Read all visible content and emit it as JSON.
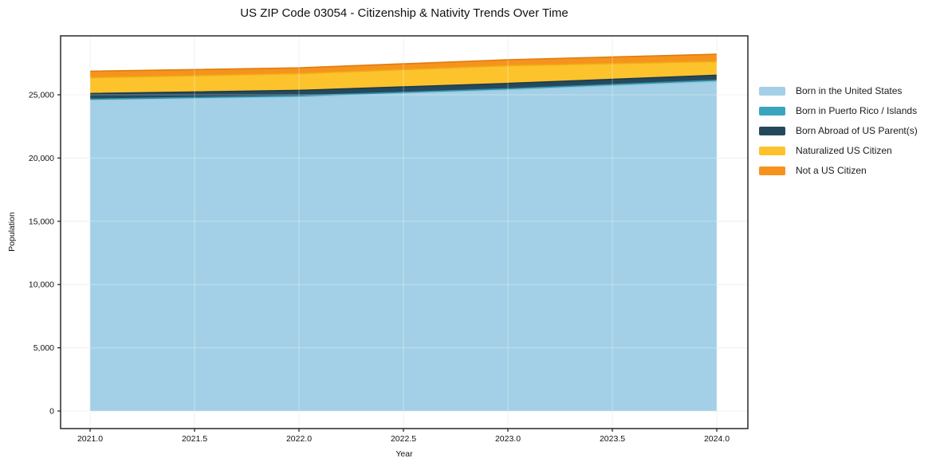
{
  "chart_data": {
    "type": "area",
    "stacked": true,
    "title": "US ZIP Code 03054 - Citizenship & Nativity Trends Over Time",
    "xlabel": "Year",
    "ylabel": "Population",
    "x": [
      2021,
      2022,
      2023,
      2024
    ],
    "series": [
      {
        "name": "Born in the United States",
        "color": "#a3d0e6",
        "edge": "#8ec4dd",
        "values": [
          24600,
          24850,
          25400,
          26050
        ]
      },
      {
        "name": "Born in Puerto Rico / Islands",
        "color": "#3aa5bf",
        "edge": "#2f8fa8",
        "values": [
          60,
          70,
          80,
          100
        ]
      },
      {
        "name": "Born Abroad of US Parent(s)",
        "color": "#25495c",
        "edge": "#1c3a4a",
        "values": [
          440,
          430,
          420,
          400
        ]
      },
      {
        "name": "Naturalized US Citizen",
        "color": "#fcc32d",
        "edge": "#eeae14",
        "values": [
          1250,
          1320,
          1400,
          1080
        ]
      },
      {
        "name": "Not a US Citizen",
        "color": "#f6931d",
        "edge": "#e07d0e",
        "values": [
          510,
          460,
          470,
          580
        ]
      }
    ],
    "x_tick_values": [
      2021.0,
      2021.5,
      2022.0,
      2022.5,
      2023.0,
      2023.5,
      2024.0
    ],
    "x_tick_labels": [
      "2021.0",
      "2021.5",
      "2022.0",
      "2022.5",
      "2023.0",
      "2023.5",
      "2024.0"
    ],
    "y_tick_values": [
      0,
      5000,
      10000,
      15000,
      20000,
      25000
    ],
    "y_tick_labels": [
      "0",
      "5,000",
      "10,000",
      "15,000",
      "20,000",
      "25,000"
    ],
    "xlim": [
      2020.85,
      2024.15
    ],
    "ylim": [
      -1400,
      29660
    ],
    "grid": true,
    "legend_position": "right-outside",
    "colors": {
      "spine": "#1a1a1a",
      "tick_label": "#111111",
      "grid_under": "#ebebeb",
      "grid_over": "rgba(255,255,255,0.35)",
      "background": "#ffffff"
    }
  }
}
